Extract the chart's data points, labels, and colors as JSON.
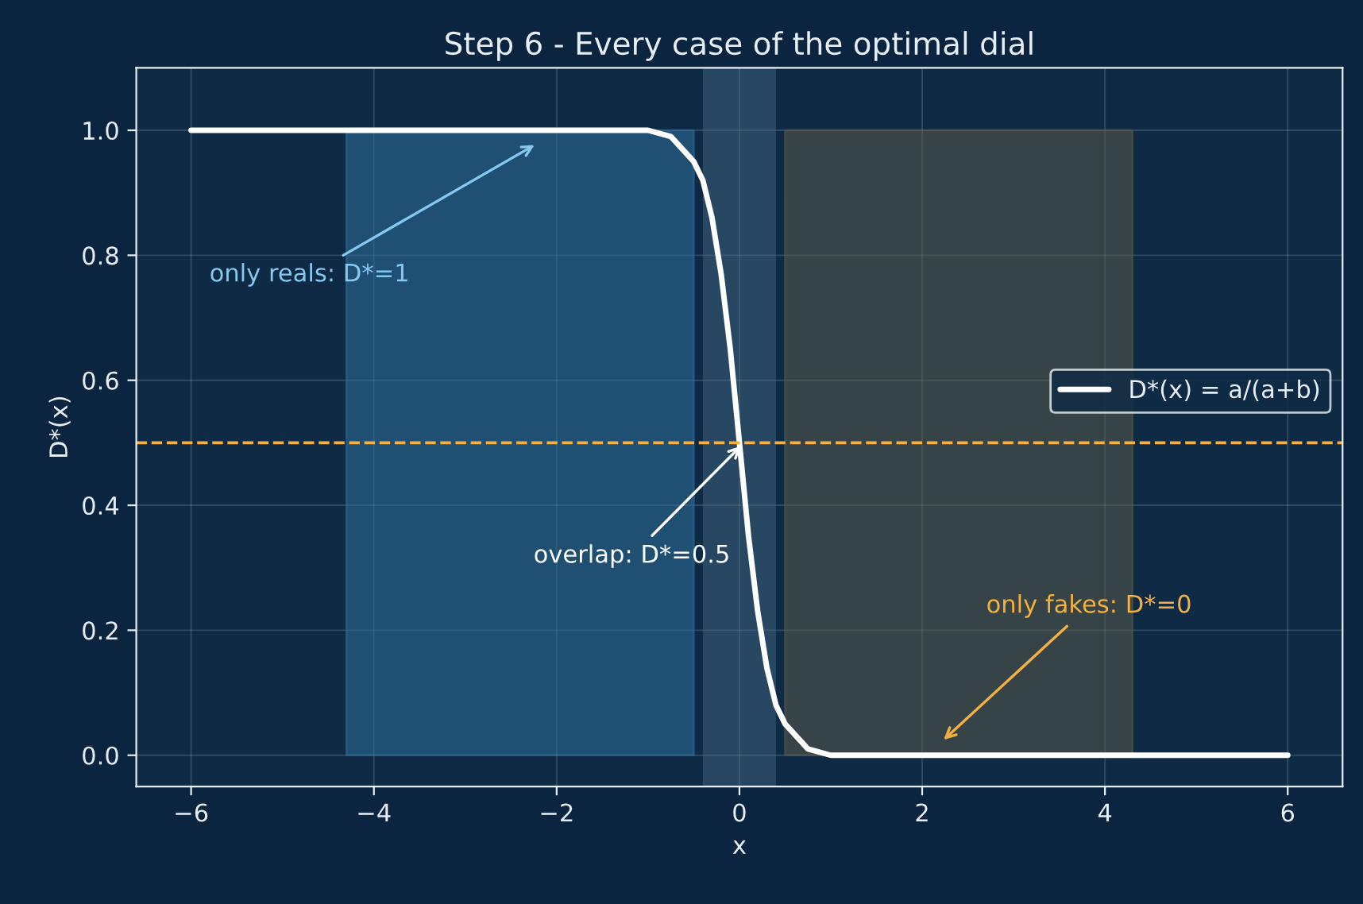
{
  "chart_data": {
    "type": "line",
    "title": "Step 6 - Every case of the optimal dial",
    "xlabel": "x",
    "ylabel": "D*(x)",
    "series": [
      {
        "type": "area",
        "color": "#2e6d99",
        "x": [
          -4.3,
          -0.5
        ],
        "values": [
          1.0,
          1.0
        ]
      },
      {
        "type": "area",
        "color": "#5a5a48",
        "x": [
          0.5,
          4.3
        ],
        "values": [
          1.0,
          1.0
        ]
      },
      {
        "name": "D*(x) = a/(a+b)",
        "color": "#ffffff",
        "x": [
          -6,
          -2,
          -1,
          -0.75,
          -0.5,
          -0.4,
          -0.3,
          -0.2,
          -0.1,
          0,
          0.1,
          0.2,
          0.3,
          0.4,
          0.5,
          0.75,
          1,
          2,
          6
        ],
        "values": [
          1.0,
          1.0,
          1.0,
          0.99,
          0.95,
          0.92,
          0.86,
          0.77,
          0.65,
          0.5,
          0.35,
          0.23,
          0.14,
          0.08,
          0.05,
          0.01,
          0.0,
          0.0,
          0.0
        ]
      }
    ],
    "bands": [
      {
        "axis": "x",
        "from": -0.4,
        "to": 0.4,
        "color": "#4a6a88"
      }
    ],
    "ref_lines": [
      {
        "axis": "y",
        "value": 0.5,
        "color": "#f5b041",
        "line_style": "dashed"
      }
    ],
    "annotations": [
      "only reals: D*=1",
      {
        "text": "overlap: D*=0.5",
        "x": 0.05,
        "y": 0.5
      },
      "only fakes: D*=0"
    ],
    "xlim": [
      -6.6,
      6.6
    ],
    "ylim": [
      -0.05,
      1.1
    ],
    "xticks": [
      {
        "value": -6,
        "label": "−6"
      },
      {
        "value": -4,
        "label": "−4"
      },
      {
        "value": -2,
        "label": "−2"
      },
      0,
      2,
      4,
      6
    ],
    "yticks": [
      {
        "value": 0,
        "label": "0.0"
      },
      {
        "value": 0.2,
        "label": "0.2"
      },
      {
        "value": 0.4,
        "label": "0.4"
      },
      {
        "value": 0.6,
        "label": "0.6"
      },
      {
        "value": 0.8,
        "label": "0.8"
      },
      {
        "value": 1,
        "label": "1.0"
      }
    ],
    "grid": true,
    "legend": "right"
  }
}
